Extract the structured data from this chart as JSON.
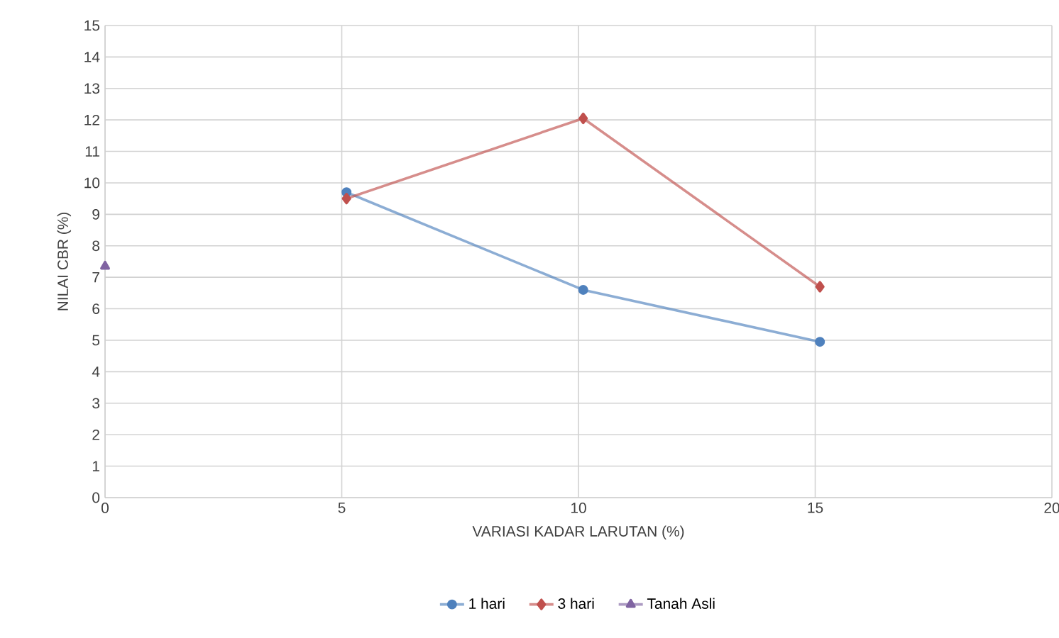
{
  "chart_data": {
    "type": "line",
    "xlabel": "VARIASI KADAR LARUTAN (%)",
    "ylabel": "NILAI CBR (%)",
    "xlim": [
      0,
      20
    ],
    "xticks": [
      0,
      5,
      10,
      15,
      20
    ],
    "ylim": [
      0,
      15
    ],
    "yticks": [
      0,
      1,
      2,
      3,
      4,
      5,
      6,
      7,
      8,
      9,
      10,
      11,
      12,
      13,
      14,
      15
    ],
    "grid": true,
    "legend": "bottom",
    "series": [
      {
        "name": "1 hari",
        "color": "#4f81bd",
        "marker": "circle",
        "x": [
          5.1,
          10.1,
          15.1
        ],
        "values": [
          9.7,
          6.6,
          4.95
        ]
      },
      {
        "name": "3 hari",
        "color": "#c0504d",
        "marker": "diamond",
        "x": [
          5.1,
          10.1,
          15.1
        ],
        "values": [
          9.5,
          12.05,
          6.7
        ]
      },
      {
        "name": "Tanah Asli",
        "color": "#8064a2",
        "marker": "triangle",
        "x": [
          0
        ],
        "values": [
          7.35
        ]
      }
    ]
  }
}
